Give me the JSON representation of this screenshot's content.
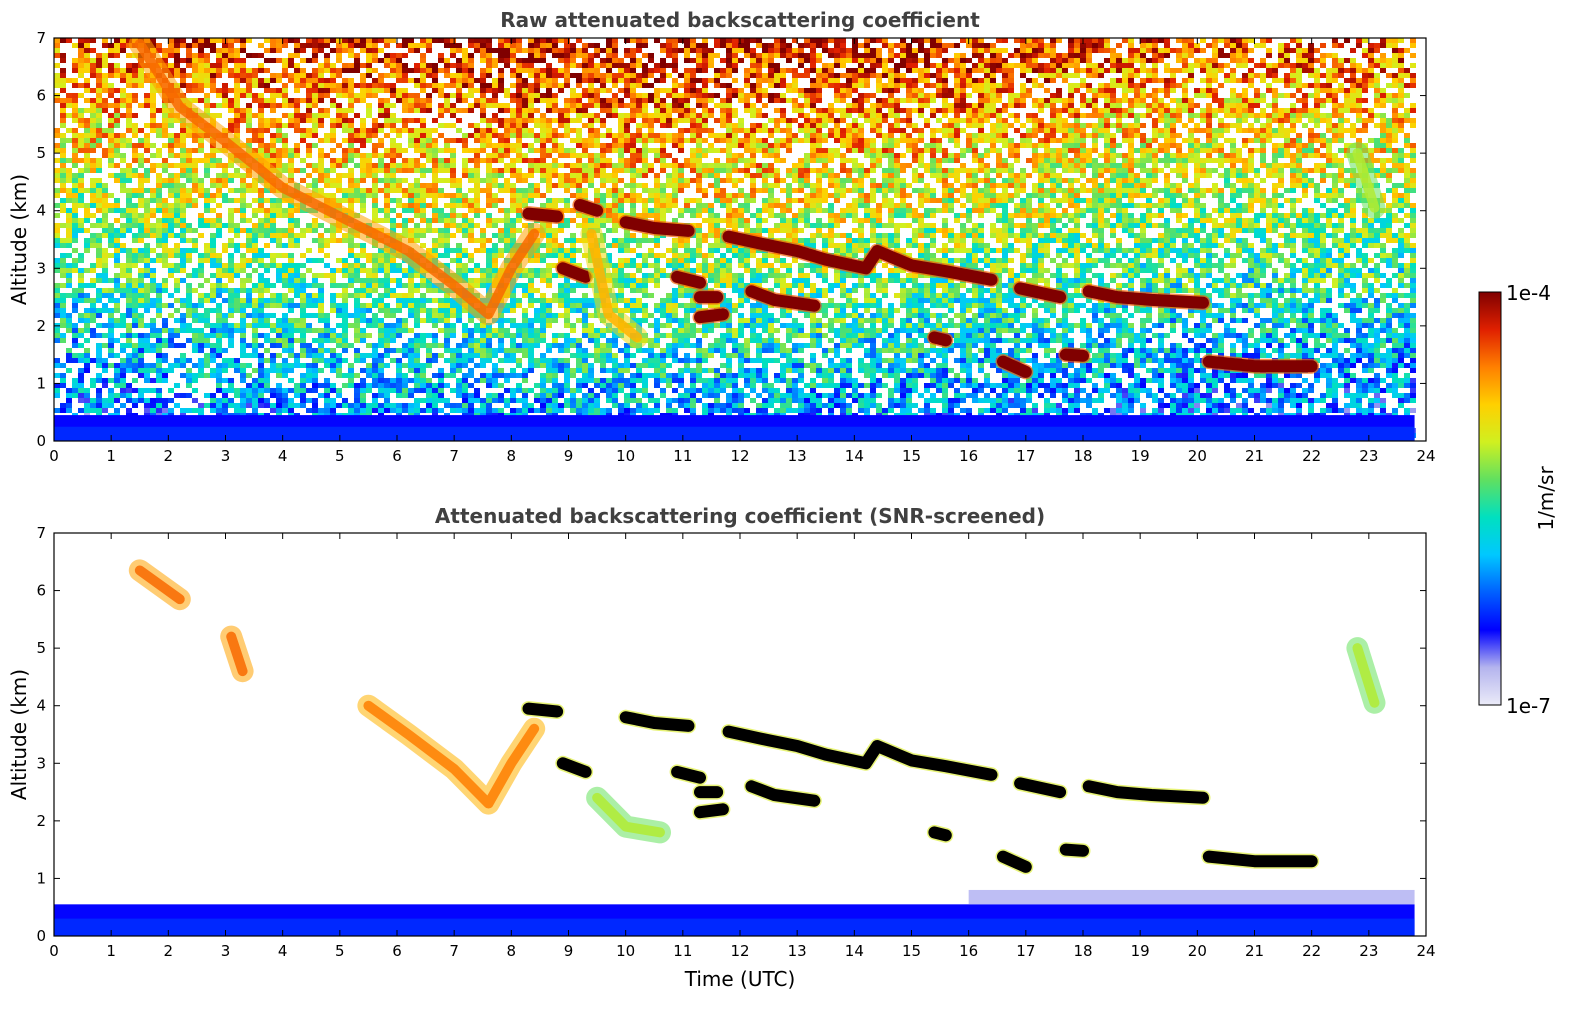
{
  "chart_data": [
    {
      "type": "heatmap",
      "title": "Raw attenuated backscattering coefficient",
      "xlabel": "",
      "ylabel": "Altitude (km)",
      "xlim": [
        0,
        24
      ],
      "ylim": [
        0,
        7
      ],
      "xticks": [
        0,
        1,
        2,
        3,
        4,
        5,
        6,
        7,
        8,
        9,
        10,
        11,
        12,
        13,
        14,
        15,
        16,
        17,
        18,
        19,
        20,
        21,
        22,
        23,
        24
      ],
      "yticks": [
        0,
        1,
        2,
        3,
        4,
        5,
        6,
        7
      ],
      "data_time_range": [
        0,
        23.8
      ],
      "features": [
        {
          "kind": "near-surface layer",
          "level": 0.08,
          "t": [
            0,
            23.8
          ],
          "z": [
            0,
            0.45
          ]
        },
        {
          "kind": "cloud layer",
          "level": 1.0,
          "points": [
            [
              8.3,
              3.95
            ],
            [
              8.8,
              3.9
            ]
          ]
        },
        {
          "kind": "cloud layer",
          "level": 1.0,
          "points": [
            [
              9.2,
              4.1
            ],
            [
              9.5,
              4.0
            ]
          ]
        },
        {
          "kind": "cloud layer",
          "level": 1.0,
          "points": [
            [
              10.0,
              3.8
            ],
            [
              10.5,
              3.7
            ],
            [
              11.1,
              3.65
            ]
          ]
        },
        {
          "kind": "cloud layer",
          "level": 1.0,
          "points": [
            [
              11.8,
              3.55
            ],
            [
              12.5,
              3.4
            ],
            [
              13.0,
              3.3
            ],
            [
              13.5,
              3.15
            ],
            [
              14.2,
              3.0
            ],
            [
              14.4,
              3.3
            ],
            [
              15.0,
              3.05
            ],
            [
              15.6,
              2.95
            ],
            [
              16.4,
              2.8
            ]
          ]
        },
        {
          "kind": "cloud layer",
          "level": 1.0,
          "points": [
            [
              16.9,
              2.65
            ],
            [
              17.6,
              2.5
            ]
          ]
        },
        {
          "kind": "cloud layer",
          "level": 1.0,
          "points": [
            [
              18.1,
              2.6
            ],
            [
              18.6,
              2.5
            ],
            [
              19.2,
              2.45
            ],
            [
              20.1,
              2.4
            ]
          ]
        },
        {
          "kind": "cloud layer",
          "level": 1.0,
          "points": [
            [
              20.2,
              1.38
            ],
            [
              21.0,
              1.3
            ],
            [
              22.0,
              1.3
            ]
          ]
        },
        {
          "kind": "cloud layer",
          "level": 1.0,
          "points": [
            [
              16.6,
              1.38
            ],
            [
              17.0,
              1.2
            ]
          ]
        },
        {
          "kind": "cloud layer",
          "level": 1.0,
          "points": [
            [
              17.7,
              1.5
            ],
            [
              18.0,
              1.48
            ]
          ]
        },
        {
          "kind": "cloud layer",
          "level": 1.0,
          "points": [
            [
              11.3,
              2.5
            ],
            [
              11.6,
              2.5
            ]
          ]
        },
        {
          "kind": "cloud layer",
          "level": 1.0,
          "points": [
            [
              12.2,
              2.6
            ],
            [
              12.6,
              2.45
            ],
            [
              13.3,
              2.35
            ]
          ]
        },
        {
          "kind": "cloud layer",
          "level": 1.0,
          "points": [
            [
              11.3,
              2.15
            ],
            [
              11.7,
              2.2
            ]
          ]
        },
        {
          "kind": "cloud layer",
          "level": 1.0,
          "points": [
            [
              8.9,
              3.0
            ],
            [
              9.3,
              2.85
            ]
          ]
        },
        {
          "kind": "cloud layer",
          "level": 1.0,
          "points": [
            [
              10.9,
              2.85
            ],
            [
              11.3,
              2.75
            ]
          ]
        },
        {
          "kind": "cloud layer",
          "level": 1.0,
          "points": [
            [
              15.4,
              1.8
            ],
            [
              15.6,
              1.75
            ]
          ]
        },
        {
          "kind": "virga",
          "level": 0.78,
          "points": [
            [
              1.5,
              6.9
            ],
            [
              2.2,
              5.8
            ],
            [
              3.0,
              5.2
            ],
            [
              4.0,
              4.4
            ],
            [
              5.0,
              3.9
            ],
            [
              6.2,
              3.3
            ],
            [
              7.0,
              2.7
            ],
            [
              7.6,
              2.2
            ],
            [
              8.0,
              3.0
            ],
            [
              8.4,
              3.6
            ]
          ]
        },
        {
          "kind": "virga",
          "level": 0.7,
          "points": [
            [
              9.4,
              3.6
            ],
            [
              9.7,
              2.2
            ],
            [
              10.2,
              1.8
            ]
          ]
        },
        {
          "kind": "virga",
          "level": 0.55,
          "points": [
            [
              22.8,
              5.0
            ],
            [
              23.1,
              4.05
            ]
          ]
        }
      ]
    },
    {
      "type": "heatmap",
      "title": "Attenuated backscattering coefficient (SNR-screened)",
      "xlabel": "Time (UTC)",
      "ylabel": "Altitude (km)",
      "xlim": [
        0,
        24
      ],
      "ylim": [
        0,
        7
      ],
      "xticks": [
        0,
        1,
        2,
        3,
        4,
        5,
        6,
        7,
        8,
        9,
        10,
        11,
        12,
        13,
        14,
        15,
        16,
        17,
        18,
        19,
        20,
        21,
        22,
        23,
        24
      ],
      "yticks": [
        0,
        1,
        2,
        3,
        4,
        5,
        6,
        7
      ],
      "data_time_range": [
        0,
        23.8
      ],
      "features": [
        {
          "kind": "near-surface layer",
          "level": 0.1,
          "t": [
            0,
            23.8
          ],
          "z": [
            0,
            0.55
          ]
        },
        {
          "kind": "cloud layer",
          "level": 1.0,
          "saturated": true,
          "points": [
            [
              8.3,
              3.95
            ],
            [
              8.8,
              3.9
            ]
          ]
        },
        {
          "kind": "cloud layer",
          "level": 1.0,
          "saturated": true,
          "points": [
            [
              10.0,
              3.8
            ],
            [
              10.5,
              3.7
            ],
            [
              11.1,
              3.65
            ]
          ]
        },
        {
          "kind": "cloud layer",
          "level": 1.0,
          "saturated": true,
          "points": [
            [
              11.8,
              3.55
            ],
            [
              12.5,
              3.4
            ],
            [
              13.0,
              3.3
            ],
            [
              13.5,
              3.15
            ],
            [
              14.2,
              3.0
            ],
            [
              14.4,
              3.3
            ],
            [
              15.0,
              3.05
            ],
            [
              15.6,
              2.95
            ],
            [
              16.4,
              2.8
            ]
          ]
        },
        {
          "kind": "cloud layer",
          "level": 1.0,
          "saturated": true,
          "points": [
            [
              16.9,
              2.65
            ],
            [
              17.6,
              2.5
            ]
          ]
        },
        {
          "kind": "cloud layer",
          "level": 1.0,
          "saturated": true,
          "points": [
            [
              18.1,
              2.6
            ],
            [
              18.6,
              2.5
            ],
            [
              19.2,
              2.45
            ],
            [
              20.1,
              2.4
            ]
          ]
        },
        {
          "kind": "cloud layer",
          "level": 1.0,
          "saturated": true,
          "points": [
            [
              20.2,
              1.38
            ],
            [
              21.0,
              1.3
            ],
            [
              22.0,
              1.3
            ]
          ]
        },
        {
          "kind": "cloud layer",
          "level": 1.0,
          "saturated": true,
          "points": [
            [
              16.6,
              1.38
            ],
            [
              17.0,
              1.2
            ]
          ]
        },
        {
          "kind": "cloud layer",
          "level": 1.0,
          "saturated": true,
          "points": [
            [
              17.7,
              1.5
            ],
            [
              18.0,
              1.48
            ]
          ]
        },
        {
          "kind": "cloud layer",
          "level": 1.0,
          "saturated": true,
          "points": [
            [
              11.3,
              2.5
            ],
            [
              11.6,
              2.5
            ]
          ]
        },
        {
          "kind": "cloud layer",
          "level": 1.0,
          "saturated": true,
          "points": [
            [
              12.2,
              2.6
            ],
            [
              12.6,
              2.45
            ],
            [
              13.3,
              2.35
            ]
          ]
        },
        {
          "kind": "cloud layer",
          "level": 1.0,
          "saturated": true,
          "points": [
            [
              11.3,
              2.15
            ],
            [
              11.7,
              2.2
            ]
          ]
        },
        {
          "kind": "cloud layer",
          "level": 1.0,
          "saturated": true,
          "points": [
            [
              8.9,
              3.0
            ],
            [
              9.3,
              2.85
            ]
          ]
        },
        {
          "kind": "cloud layer",
          "level": 1.0,
          "saturated": true,
          "points": [
            [
              10.9,
              2.85
            ],
            [
              11.3,
              2.75
            ]
          ]
        },
        {
          "kind": "cloud layer",
          "level": 1.0,
          "saturated": true,
          "points": [
            [
              15.4,
              1.8
            ],
            [
              15.6,
              1.75
            ]
          ]
        },
        {
          "kind": "virga",
          "level": 0.78,
          "points": [
            [
              1.5,
              6.35
            ],
            [
              2.2,
              5.85
            ]
          ]
        },
        {
          "kind": "virga",
          "level": 0.78,
          "points": [
            [
              3.1,
              5.2
            ],
            [
              3.3,
              4.6
            ]
          ]
        },
        {
          "kind": "virga",
          "level": 0.76,
          "points": [
            [
              5.5,
              4.0
            ],
            [
              6.2,
              3.5
            ],
            [
              7.0,
              2.9
            ],
            [
              7.6,
              2.3
            ],
            [
              8.0,
              3.0
            ],
            [
              8.4,
              3.6
            ]
          ]
        },
        {
          "kind": "virga",
          "level": 0.55,
          "points": [
            [
              9.5,
              2.4
            ],
            [
              10.0,
              1.9
            ],
            [
              10.6,
              1.8
            ]
          ]
        },
        {
          "kind": "virga",
          "level": 0.55,
          "points": [
            [
              22.8,
              5.0
            ],
            [
              23.1,
              4.05
            ]
          ]
        }
      ]
    }
  ],
  "colorbar": {
    "label": "1/m/sr",
    "max_label": "1e-4",
    "min_label": "1e-7",
    "scale": "log",
    "colormap": [
      "#ebebf8",
      "#b4b4ee",
      "#0000ff",
      "#0060ff",
      "#00c8ff",
      "#00e0c0",
      "#60e060",
      "#d0f020",
      "#ffd000",
      "#ff8000",
      "#e02000",
      "#800000"
    ]
  }
}
